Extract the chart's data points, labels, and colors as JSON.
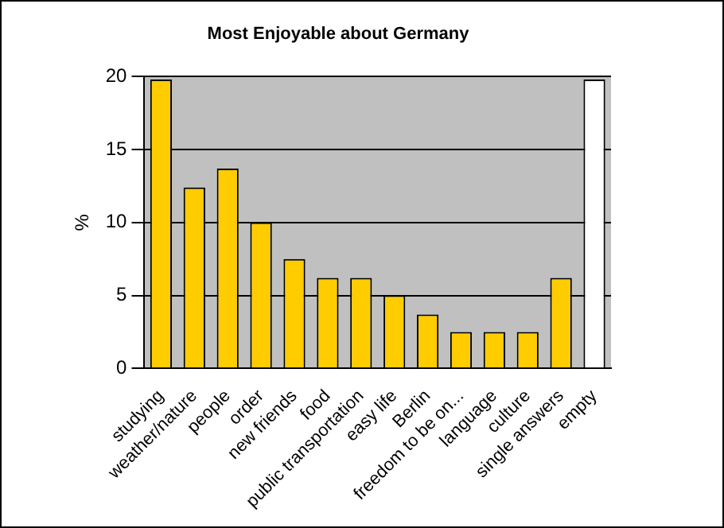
{
  "chart_data": {
    "type": "bar",
    "title": "Most Enjoyable about Germany",
    "ylabel": "%",
    "categories": [
      "studying",
      "weather/nature",
      "people",
      "order",
      "new friends",
      "food",
      "public transportation",
      "easy life",
      "Berlin",
      "freedom to be on...",
      "language",
      "culture",
      "single answers",
      "empty"
    ],
    "values": [
      19.8,
      12.4,
      13.7,
      10,
      7.5,
      6.2,
      6.2,
      5,
      3.7,
      2.5,
      2.5,
      2.5,
      6.2,
      19.8
    ],
    "colors": [
      "#ffcc00",
      "#ffcc00",
      "#ffcc00",
      "#ffcc00",
      "#ffcc00",
      "#ffcc00",
      "#ffcc00",
      "#ffcc00",
      "#ffcc00",
      "#ffcc00",
      "#ffcc00",
      "#ffcc00",
      "#ffcc00",
      "#ffffff"
    ],
    "ylim": [
      0,
      20
    ],
    "yticks": [
      0,
      5,
      10,
      15,
      20
    ],
    "grid": "y",
    "legend": false
  }
}
